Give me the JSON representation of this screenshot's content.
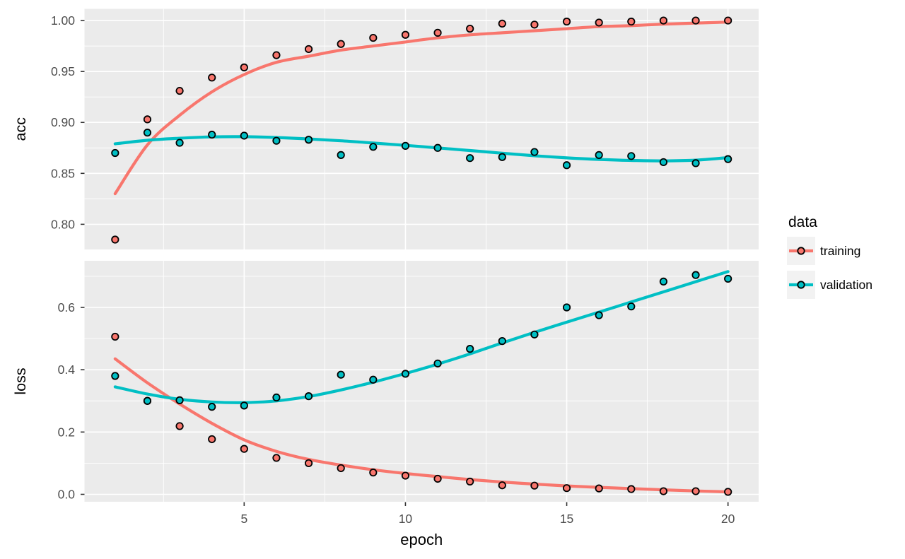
{
  "figure": {
    "background": "#FFFFFF",
    "panel_background": "#EBEBEB",
    "grid_color": "#FFFFFF",
    "tick_label_color": "#4D4D4D",
    "axis_title_color": "#000000",
    "tick_mark_color": "#333333"
  },
  "legend": {
    "title": "data",
    "key_background": "#F2F2F2",
    "items": [
      {
        "label": "training",
        "color": "#F8766D"
      },
      {
        "label": "validation",
        "color": "#00BFC4"
      }
    ]
  },
  "chart_data": {
    "type": "line",
    "smoother": "loess",
    "grid": true,
    "legend_position": "right",
    "xlabel": "epoch",
    "x": [
      1,
      2,
      3,
      4,
      5,
      6,
      7,
      8,
      9,
      10,
      11,
      12,
      13,
      14,
      15,
      16,
      17,
      18,
      19,
      20
    ],
    "xlim": [
      0.05,
      20.95
    ],
    "x_ticks": [
      5,
      10,
      15,
      20
    ],
    "x_tick_labels": [
      "5",
      "10",
      "15",
      "20"
    ],
    "x_minor": [
      2.5,
      7.5,
      12.5,
      17.5
    ],
    "facets": [
      {
        "ylabel": "acc",
        "ylim": [
          0.7753,
          1.0115
        ],
        "y_ticks": [
          1.0,
          0.95,
          0.9,
          0.85,
          0.8
        ],
        "y_tick_labels": [
          "1.00",
          "0.95",
          "0.90",
          "0.85",
          "0.80"
        ],
        "y_minor": [
          0.975,
          0.925,
          0.875,
          0.825
        ],
        "series": [
          {
            "name": "training",
            "color": "#F8766D",
            "points": [
              0.785,
              0.903,
              0.931,
              0.944,
              0.954,
              0.966,
              0.972,
              0.977,
              0.983,
              0.986,
              0.988,
              0.992,
              0.997,
              0.996,
              0.999,
              0.998,
              0.999,
              1.0,
              1.0,
              1.0
            ],
            "smooth": [
              0.83,
              0.878,
              0.907,
              0.93,
              0.947,
              0.959,
              0.965,
              0.971,
              0.975,
              0.979,
              0.983,
              0.986,
              0.988,
              0.99,
              0.992,
              0.994,
              0.995,
              0.9965,
              0.9975,
              0.9985
            ]
          },
          {
            "name": "validation",
            "color": "#00BFC4",
            "points": [
              0.87,
              0.89,
              0.88,
              0.888,
              0.887,
              0.882,
              0.883,
              0.868,
              0.876,
              0.877,
              0.875,
              0.865,
              0.866,
              0.871,
              0.858,
              0.868,
              0.867,
              0.861,
              0.86,
              0.864
            ],
            "smooth": [
              0.879,
              0.8825,
              0.8845,
              0.8858,
              0.886,
              0.8852,
              0.8838,
              0.882,
              0.8798,
              0.8775,
              0.875,
              0.8724,
              0.8698,
              0.8673,
              0.8652,
              0.8637,
              0.8627,
              0.8623,
              0.863,
              0.8655
            ]
          }
        ]
      },
      {
        "ylabel": "loss",
        "ylim": [
          -0.0238,
          0.7497
        ],
        "y_ticks": [
          0.6,
          0.4,
          0.2,
          0.0
        ],
        "y_tick_labels": [
          "0.6",
          "0.4",
          "0.2",
          "0.0"
        ],
        "y_minor": [
          0.7,
          0.5,
          0.3,
          0.1
        ],
        "series": [
          {
            "name": "training",
            "color": "#F8766D",
            "points": [
              0.506,
              0.3,
              0.219,
              0.177,
              0.146,
              0.117,
              0.1,
              0.084,
              0.07,
              0.06,
              0.05,
              0.041,
              0.029,
              0.028,
              0.02,
              0.019,
              0.017,
              0.01,
              0.01,
              0.008
            ],
            "smooth": [
              0.435,
              0.358,
              0.29,
              0.228,
              0.175,
              0.138,
              0.112,
              0.094,
              0.079,
              0.067,
              0.057,
              0.0475,
              0.0395,
              0.033,
              0.027,
              0.0225,
              0.0185,
              0.0145,
              0.011,
              0.008
            ]
          },
          {
            "name": "validation",
            "color": "#00BFC4",
            "points": [
              0.38,
              0.3,
              0.302,
              0.281,
              0.285,
              0.311,
              0.315,
              0.384,
              0.368,
              0.387,
              0.42,
              0.467,
              0.492,
              0.513,
              0.6,
              0.575,
              0.603,
              0.683,
              0.704,
              0.692
            ],
            "smooth": [
              0.345,
              0.322,
              0.305,
              0.2965,
              0.2945,
              0.3,
              0.314,
              0.335,
              0.36,
              0.388,
              0.418,
              0.451,
              0.486,
              0.52,
              0.5525,
              0.585,
              0.6175,
              0.65,
              0.6825,
              0.715
            ]
          }
        ]
      }
    ]
  }
}
